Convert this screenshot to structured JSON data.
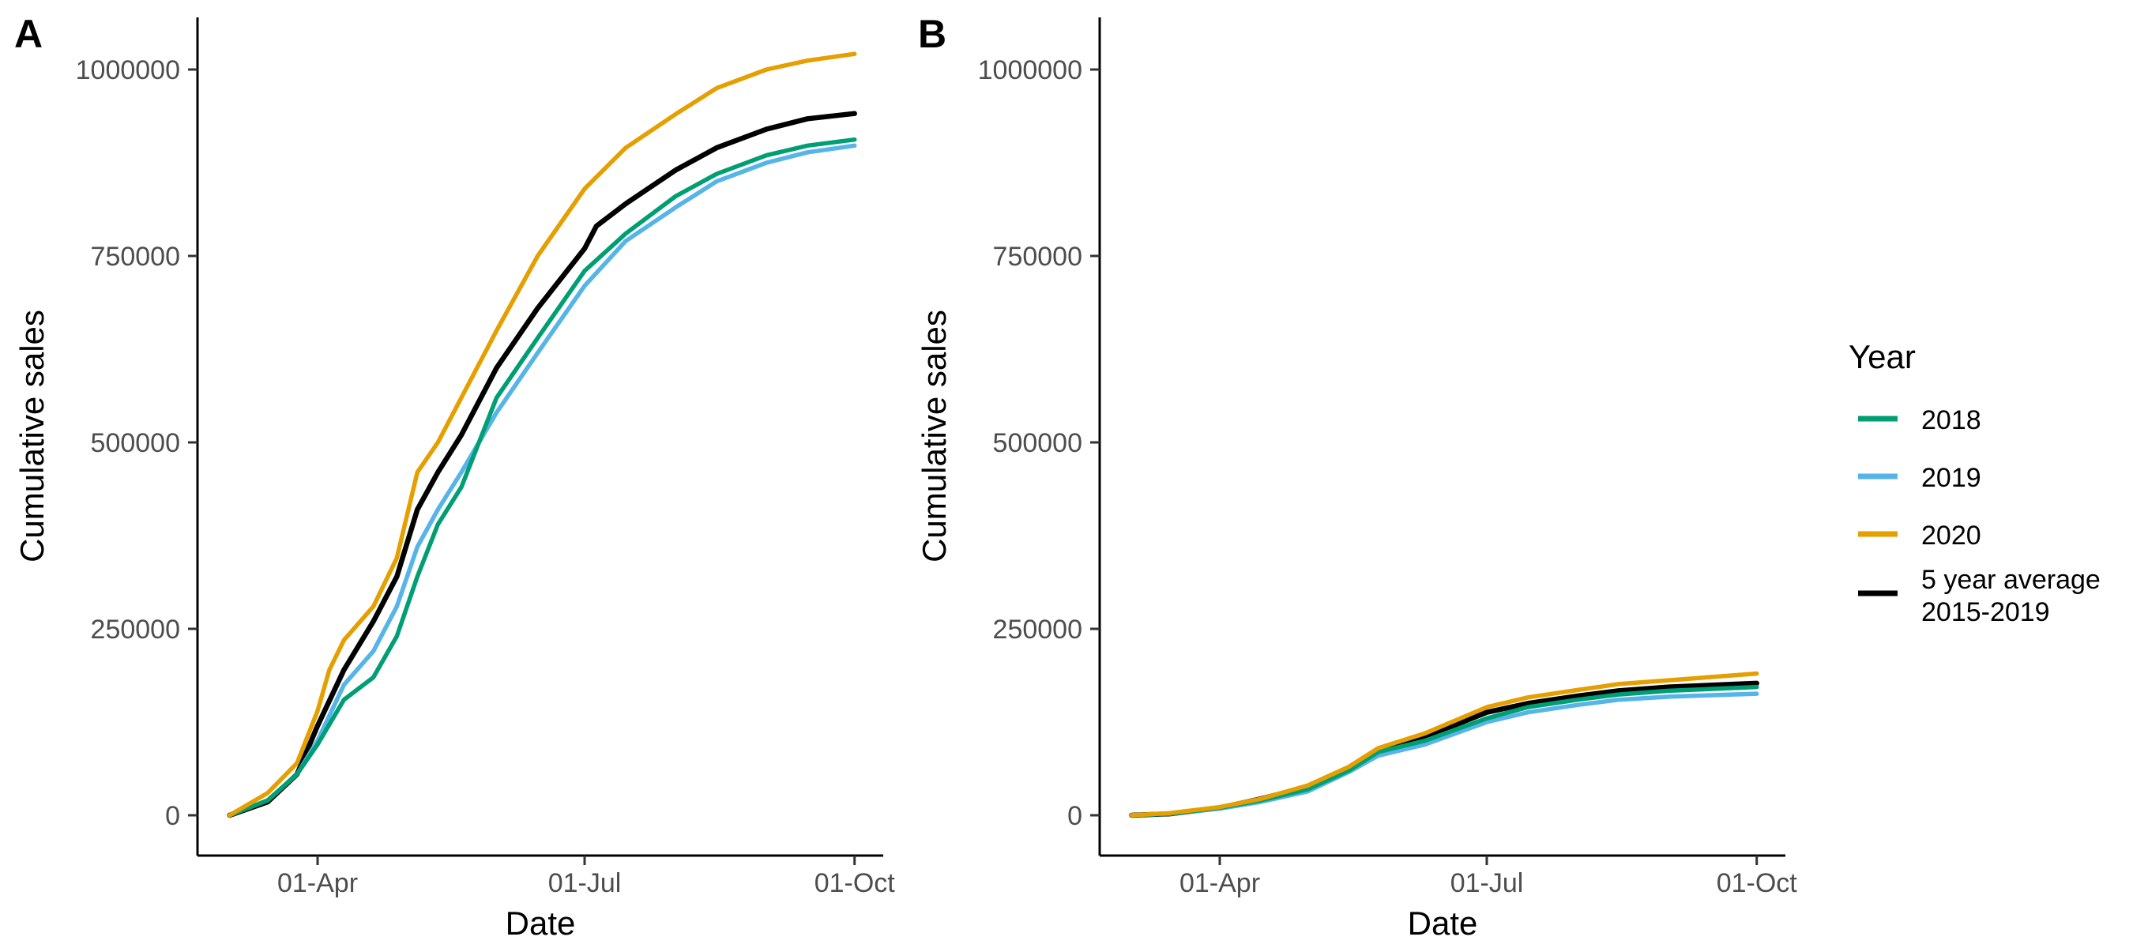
{
  "chart_data": [
    {
      "type": "line",
      "panel_label": "A",
      "xlabel": "Date",
      "ylabel": "Cumulative sales",
      "x_ticks": [
        "01-Apr",
        "01-Jul",
        "01-Oct"
      ],
      "y_ticks": [
        "0",
        "250000",
        "500000",
        "750000",
        "1000000"
      ],
      "ylim": [
        -50000,
        1070000
      ],
      "series": [
        {
          "name": "2018",
          "color": "#009E73",
          "points": [
            [
              "03-02",
              0
            ],
            [
              "03-15",
              20000
            ],
            [
              "03-25",
              55000
            ],
            [
              "04-01",
              95000
            ],
            [
              "04-10",
              155000
            ],
            [
              "04-20",
              185000
            ],
            [
              "04-28",
              240000
            ],
            [
              "05-05",
              320000
            ],
            [
              "05-12",
              390000
            ],
            [
              "05-20",
              440000
            ],
            [
              "06-01",
              560000
            ],
            [
              "06-15",
              640000
            ],
            [
              "07-01",
              730000
            ],
            [
              "07-15",
              780000
            ],
            [
              "08-01",
              830000
            ],
            [
              "08-15",
              860000
            ],
            [
              "09-01",
              885000
            ],
            [
              "09-15",
              898000
            ],
            [
              "10-01",
              906000
            ]
          ]
        },
        {
          "name": "2019",
          "color": "#56B4E9",
          "points": [
            [
              "03-02",
              0
            ],
            [
              "03-15",
              20000
            ],
            [
              "03-25",
              55000
            ],
            [
              "04-01",
              100000
            ],
            [
              "04-10",
              175000
            ],
            [
              "04-20",
              220000
            ],
            [
              "04-28",
              280000
            ],
            [
              "05-05",
              360000
            ],
            [
              "05-12",
              410000
            ],
            [
              "05-20",
              460000
            ],
            [
              "06-01",
              540000
            ],
            [
              "06-15",
              620000
            ],
            [
              "07-01",
              710000
            ],
            [
              "07-15",
              770000
            ],
            [
              "08-01",
              815000
            ],
            [
              "08-15",
              850000
            ],
            [
              "09-01",
              875000
            ],
            [
              "09-15",
              889000
            ],
            [
              "10-01",
              898000
            ]
          ]
        },
        {
          "name": "2020",
          "color": "#E69F00",
          "points": [
            [
              "03-02",
              0
            ],
            [
              "03-15",
              30000
            ],
            [
              "03-25",
              70000
            ],
            [
              "04-01",
              140000
            ],
            [
              "04-05",
              195000
            ],
            [
              "04-10",
              235000
            ],
            [
              "04-20",
              280000
            ],
            [
              "04-28",
              345000
            ],
            [
              "05-05",
              460000
            ],
            [
              "05-12",
              500000
            ],
            [
              "05-20",
              560000
            ],
            [
              "06-01",
              650000
            ],
            [
              "06-15",
              750000
            ],
            [
              "07-01",
              840000
            ],
            [
              "07-15",
              895000
            ],
            [
              "08-01",
              940000
            ],
            [
              "08-15",
              975000
            ],
            [
              "09-01",
              1000000
            ],
            [
              "09-15",
              1012000
            ],
            [
              "10-01",
              1021000
            ]
          ]
        },
        {
          "name": "5 year average\n2015-2019",
          "color": "#000000",
          "points": [
            [
              "03-02",
              0
            ],
            [
              "03-15",
              18000
            ],
            [
              "03-25",
              55000
            ],
            [
              "04-01",
              120000
            ],
            [
              "04-10",
              195000
            ],
            [
              "04-20",
              260000
            ],
            [
              "04-28",
              320000
            ],
            [
              "05-05",
              410000
            ],
            [
              "05-12",
              460000
            ],
            [
              "05-20",
              510000
            ],
            [
              "06-01",
              600000
            ],
            [
              "06-15",
              680000
            ],
            [
              "07-01",
              760000
            ],
            [
              "07-05",
              790000
            ],
            [
              "07-15",
              820000
            ],
            [
              "08-01",
              865000
            ],
            [
              "08-15",
              895000
            ],
            [
              "09-01",
              920000
            ],
            [
              "09-15",
              934000
            ],
            [
              "10-01",
              941000
            ]
          ]
        }
      ]
    },
    {
      "type": "line",
      "panel_label": "B",
      "xlabel": "Date",
      "ylabel": "Cumulative sales",
      "x_ticks": [
        "01-Apr",
        "01-Jul",
        "01-Oct"
      ],
      "y_ticks": [
        "0",
        "250000",
        "500000",
        "750000",
        "1000000"
      ],
      "ylim": [
        -50000,
        1070000
      ],
      "series": [
        {
          "name": "2018",
          "color": "#009E73",
          "points": [
            [
              "03-02",
              0
            ],
            [
              "03-15",
              2000
            ],
            [
              "04-01",
              10000
            ],
            [
              "04-15",
              20000
            ],
            [
              "05-01",
              35000
            ],
            [
              "05-15",
              60000
            ],
            [
              "05-25",
              85000
            ],
            [
              "06-10",
              100000
            ],
            [
              "07-01",
              130000
            ],
            [
              "07-15",
              145000
            ],
            [
              "08-01",
              155000
            ],
            [
              "08-15",
              162000
            ],
            [
              "09-01",
              167000
            ],
            [
              "10-01",
              172000
            ]
          ]
        },
        {
          "name": "2019",
          "color": "#56B4E9",
          "points": [
            [
              "03-02",
              0
            ],
            [
              "03-15",
              2000
            ],
            [
              "04-01",
              9000
            ],
            [
              "04-15",
              18000
            ],
            [
              "05-01",
              32000
            ],
            [
              "05-15",
              58000
            ],
            [
              "05-25",
              80000
            ],
            [
              "06-10",
              95000
            ],
            [
              "07-01",
              125000
            ],
            [
              "07-15",
              138000
            ],
            [
              "08-01",
              148000
            ],
            [
              "08-15",
              155000
            ],
            [
              "09-01",
              159000
            ],
            [
              "10-01",
              163000
            ]
          ]
        },
        {
          "name": "2020",
          "color": "#E69F00",
          "points": [
            [
              "03-02",
              0
            ],
            [
              "03-15",
              3000
            ],
            [
              "04-01",
              11000
            ],
            [
              "04-15",
              22000
            ],
            [
              "05-01",
              40000
            ],
            [
              "05-15",
              65000
            ],
            [
              "05-25",
              90000
            ],
            [
              "06-10",
              110000
            ],
            [
              "07-01",
              145000
            ],
            [
              "07-15",
              158000
            ],
            [
              "08-01",
              168000
            ],
            [
              "08-15",
              176000
            ],
            [
              "09-01",
              181000
            ],
            [
              "10-01",
              190000
            ]
          ]
        },
        {
          "name": "5 year average\n2015-2019",
          "color": "#000000",
          "points": [
            [
              "03-02",
              0
            ],
            [
              "03-15",
              2000
            ],
            [
              "04-01",
              10000
            ],
            [
              "04-15",
              22000
            ],
            [
              "05-01",
              38000
            ],
            [
              "05-15",
              62000
            ],
            [
              "05-25",
              88000
            ],
            [
              "06-10",
              105000
            ],
            [
              "07-01",
              138000
            ],
            [
              "07-15",
              150000
            ],
            [
              "08-01",
              160000
            ],
            [
              "08-15",
              167000
            ],
            [
              "09-01",
              172000
            ],
            [
              "10-01",
              177000
            ]
          ]
        }
      ]
    }
  ],
  "legend": {
    "title": "Year",
    "items": [
      {
        "label": "2018",
        "color": "#009E73"
      },
      {
        "label": "2019",
        "color": "#56B4E9"
      },
      {
        "label": "2020",
        "color": "#E69F00"
      },
      {
        "label_line1": "5 year average",
        "label_line2": "2015-2019",
        "color": "#000000"
      }
    ]
  }
}
